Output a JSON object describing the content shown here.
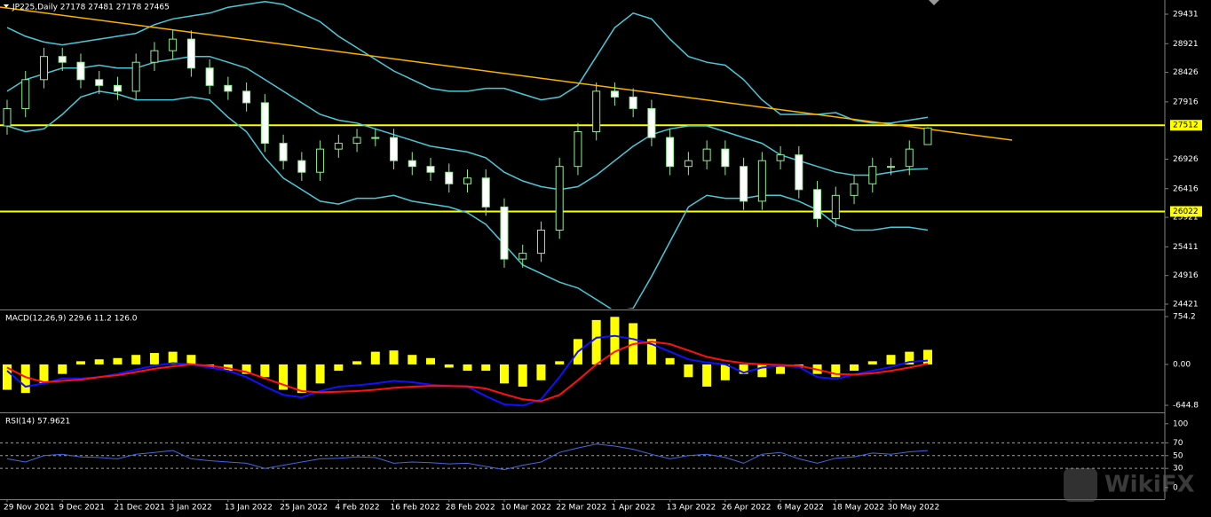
{
  "watermark": "WikiFX",
  "chart_data": [
    {
      "type": "candlestick",
      "title": "JP225,Daily  27178 27481 27178 27465",
      "categories": [
        "29 Nov 2021",
        null,
        null,
        "9 Dec 2021",
        null,
        null,
        "21 Dec 2021",
        null,
        null,
        "3 Jan 2022",
        null,
        null,
        "13 Jan 2022",
        null,
        null,
        "25 Jan 2022",
        null,
        null,
        "4 Feb 2022",
        null,
        null,
        "16 Feb 2022",
        null,
        null,
        "28 Feb 2022",
        null,
        null,
        "10 Mar 2022",
        null,
        null,
        "22 Mar 2022",
        null,
        null,
        "1 Apr 2022",
        null,
        null,
        "13 Apr 2022",
        null,
        null,
        "26 Apr 2022",
        null,
        null,
        "6 May 2022",
        null,
        null,
        "18 May 2022",
        null,
        null,
        "30 May 2022",
        null,
        null
      ],
      "open": [
        27500,
        27800,
        28300,
        28700,
        28600,
        28300,
        28200,
        28100,
        28600,
        28800,
        29000,
        28500,
        28200,
        28100,
        27900,
        27200,
        26900,
        26700,
        27100,
        27200,
        27300,
        27300,
        26900,
        26800,
        26700,
        26500,
        26600,
        26100,
        25200,
        25300,
        25700,
        26800,
        27400,
        28100,
        28000,
        27800,
        27300,
        26800,
        26900,
        27100,
        26800,
        26200,
        26900,
        27000,
        26400,
        25900,
        26300,
        26500,
        26800,
        26800,
        27178
      ],
      "high": [
        27950,
        28450,
        28850,
        28850,
        28750,
        28450,
        28350,
        28750,
        28950,
        29150,
        29150,
        28650,
        28350,
        28250,
        28050,
        27350,
        27050,
        27250,
        27350,
        27450,
        27450,
        27450,
        27050,
        26950,
        26850,
        26750,
        26750,
        26250,
        25450,
        25850,
        26950,
        27550,
        28250,
        28250,
        28150,
        27950,
        27450,
        27050,
        27250,
        27250,
        26950,
        27050,
        27150,
        27150,
        26550,
        26450,
        26650,
        26950,
        26950,
        27250,
        27481
      ],
      "low": [
        27350,
        27650,
        28150,
        28450,
        28150,
        28050,
        27950,
        27950,
        28450,
        28650,
        28350,
        28050,
        27950,
        27750,
        27050,
        26750,
        26550,
        26550,
        26950,
        27050,
        27150,
        26750,
        26650,
        26550,
        26350,
        26350,
        25950,
        25050,
        25050,
        25150,
        25550,
        26650,
        27250,
        27850,
        27650,
        27150,
        26650,
        26650,
        26750,
        26650,
        26050,
        26050,
        26750,
        26250,
        25750,
        25750,
        26150,
        26350,
        26650,
        26650,
        27178
      ],
      "close": [
        27800,
        28300,
        28700,
        28600,
        28300,
        28200,
        28100,
        28600,
        28800,
        29000,
        28500,
        28200,
        28100,
        27900,
        27200,
        26900,
        26700,
        27100,
        27200,
        27300,
        27300,
        26900,
        26800,
        26700,
        26500,
        26600,
        26100,
        25200,
        25300,
        25700,
        26800,
        27400,
        28100,
        28000,
        27800,
        27300,
        26800,
        26900,
        27100,
        26800,
        26200,
        26900,
        27000,
        26400,
        25900,
        26300,
        26500,
        26800,
        26800,
        27100,
        27465
      ],
      "candle_color": "#90ee90",
      "series": [
        {
          "color": "#48c9d8",
          "values": [
            29200,
            29050,
            28950,
            28900,
            28950,
            29000,
            29050,
            29100,
            29250,
            29350,
            29400,
            29450,
            29550,
            29600,
            29650,
            29600,
            29450,
            29300,
            29050,
            28850,
            28650,
            28450,
            28300,
            28150,
            28100,
            28100,
            28150,
            28150,
            28050,
            27950,
            28000,
            28200,
            28700,
            29200,
            29450,
            29350,
            29000,
            28700,
            28600,
            28550,
            28300,
            27950,
            27700,
            27700,
            27700,
            27730,
            27600,
            27550,
            27550,
            27600,
            27650
          ]
        },
        {
          "color": "#48c9d8",
          "values": [
            28100,
            28300,
            28400,
            28500,
            28500,
            28550,
            28500,
            28500,
            28600,
            28650,
            28700,
            28700,
            28600,
            28500,
            28300,
            28100,
            27900,
            27700,
            27600,
            27550,
            27450,
            27350,
            27250,
            27150,
            27100,
            27050,
            26950,
            26700,
            26550,
            26450,
            26400,
            26450,
            26650,
            26900,
            27150,
            27350,
            27450,
            27500,
            27500,
            27400,
            27300,
            27200,
            27000,
            26900,
            26800,
            26700,
            26650,
            26650,
            26700,
            26750,
            26760
          ]
        },
        {
          "color": "#48c9d8",
          "values": [
            27500,
            27400,
            27450,
            27700,
            28000,
            28100,
            28050,
            27950,
            27950,
            27950,
            28000,
            27950,
            27650,
            27400,
            26950,
            26600,
            26400,
            26200,
            26150,
            26250,
            26250,
            26300,
            26200,
            26150,
            26100,
            26000,
            25800,
            25450,
            25100,
            24950,
            24800,
            24700,
            24500,
            24300,
            24350,
            24900,
            25500,
            26100,
            26300,
            26250,
            26250,
            26300,
            26300,
            26200,
            26050,
            25800,
            25700,
            25700,
            25750,
            25750,
            25700
          ]
        }
      ],
      "trendline": {
        "color": "#ffb000",
        "values": [
          29553,
          27255
        ]
      },
      "levels": [
        27512,
        26022
      ],
      "level_color": "#ffff00",
      "ylim": [
        24344,
        29676
      ],
      "yticks": [
        29431,
        28921,
        28426,
        27916,
        26926,
        26416,
        25921,
        25411,
        24916,
        24421
      ]
    },
    {
      "type": "macd",
      "title": "MACD(12,26,9) 229.6 11.2 126.0",
      "series": [
        {
          "style": "bar",
          "color": "#ffff00",
          "values": [
            -400,
            -450,
            -300,
            -150,
            50,
            80,
            100,
            150,
            180,
            200,
            150,
            -50,
            -100,
            -150,
            -200,
            -400,
            -450,
            -300,
            -100,
            50,
            200,
            220,
            150,
            100,
            -50,
            -100,
            -100,
            -300,
            -350,
            -250,
            50,
            400,
            700,
            750,
            650,
            400,
            100,
            -200,
            -350,
            -250,
            -150,
            -200,
            -150,
            -50,
            -150,
            -200,
            -100,
            50,
            150,
            200,
            229.6
          ]
        },
        {
          "style": "line",
          "color": "#1010ff",
          "values": [
            -100,
            -350,
            -300,
            -220,
            -220,
            -200,
            -150,
            -80,
            -20,
            20,
            0,
            -50,
            -100,
            -200,
            -350,
            -480,
            -520,
            -420,
            -350,
            -330,
            -300,
            -260,
            -280,
            -320,
            -340,
            -350,
            -500,
            -630,
            -650,
            -550,
            -200,
            200,
            420,
            450,
            400,
            320,
            200,
            80,
            30,
            0,
            -130,
            -50,
            -20,
            -40,
            -200,
            -230,
            -160,
            -100,
            -40,
            40,
            60
          ]
        },
        {
          "style": "line",
          "color": "#ff1010",
          "values": [
            -50,
            -200,
            -280,
            -260,
            -240,
            -200,
            -170,
            -120,
            -70,
            -30,
            0,
            -20,
            -60,
            -120,
            -220,
            -320,
            -420,
            -440,
            -430,
            -420,
            -400,
            -370,
            -350,
            -340,
            -340,
            -345,
            -380,
            -470,
            -550,
            -580,
            -480,
            -250,
            0,
            200,
            320,
            360,
            320,
            220,
            120,
            60,
            20,
            0,
            -10,
            -20,
            -80,
            -150,
            -160,
            -140,
            -100,
            -50,
            11.2
          ]
        }
      ],
      "ylim": [
        -728,
        838
      ],
      "yticks": [
        754.2,
        {
          "value": 0,
          "label": "0.00"
        },
        -644.8
      ]
    },
    {
      "type": "line",
      "title": "RSI(14) 57.9621",
      "series": [
        {
          "color": "#4169e1",
          "values": [
            45,
            40,
            50,
            52,
            48,
            47,
            45,
            52,
            55,
            58,
            45,
            42,
            40,
            38,
            30,
            35,
            40,
            45,
            46,
            48,
            47,
            38,
            40,
            39,
            37,
            38,
            33,
            28,
            35,
            40,
            55,
            62,
            68,
            65,
            60,
            52,
            45,
            50,
            52,
            47,
            38,
            52,
            55,
            45,
            38,
            46,
            48,
            54,
            52,
            56,
            57.96
          ]
        }
      ],
      "levels": [
        70,
        50,
        30
      ],
      "level_color": "#a0a0a0",
      "level_dash": true,
      "ylim": [
        -17,
        115
      ],
      "yticks": [
        100,
        70,
        50,
        30,
        0
      ]
    }
  ]
}
